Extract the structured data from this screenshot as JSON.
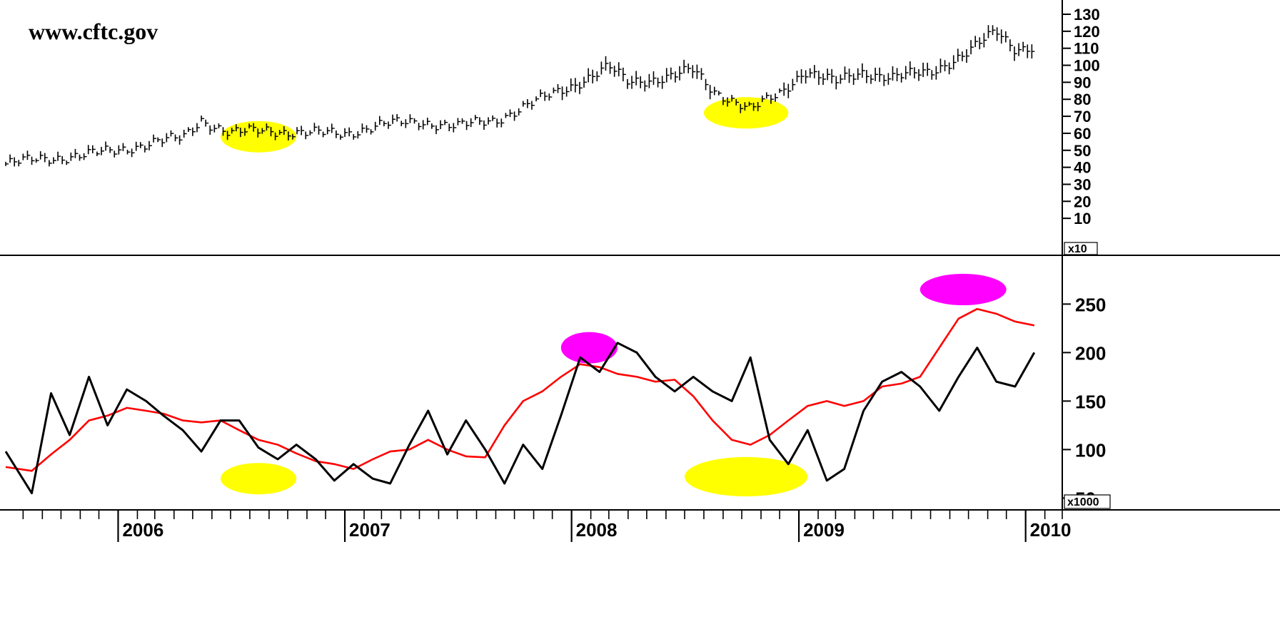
{
  "watermark": "www.cftc.gov",
  "chart_data": [
    {
      "type": "line",
      "subtype": "ohlc-bar",
      "title": "",
      "ylim": [
        0,
        130
      ],
      "yticks": [
        10,
        20,
        30,
        40,
        50,
        60,
        70,
        80,
        90,
        100,
        110,
        120,
        130
      ],
      "multiplier_label": "x10",
      "x": [
        "2005-07-04",
        "2005-09-01",
        "2005-11-01",
        "2006-01-01",
        "2006-03-01",
        "2006-04-15",
        "2006-05-15",
        "2006-07-01",
        "2006-09-01",
        "2006-11-01",
        "2007-01-01",
        "2007-03-01",
        "2007-05-01",
        "2007-07-01",
        "2007-09-01",
        "2007-11-01",
        "2008-01-01",
        "2008-03-01",
        "2008-04-01",
        "2008-06-01",
        "2008-07-15",
        "2008-08-15",
        "2008-09-15",
        "2008-10-15",
        "2008-12-01",
        "2009-01-10",
        "2009-03-01",
        "2009-04-15",
        "2009-06-01",
        "2009-08-01",
        "2009-10-01",
        "2009-11-15",
        "2009-12-15",
        "2010-01-15"
      ],
      "series": [
        {
          "values": [
            42,
            45,
            47,
            50,
            55,
            57,
            68,
            60,
            62,
            60,
            60,
            65,
            67,
            64,
            68,
            78,
            88,
            99,
            90,
            93,
            97,
            85,
            80,
            74,
            83,
            97,
            90,
            96,
            93,
            96,
            108,
            120,
            110,
            111
          ]
        }
      ],
      "highlights": [
        {
          "color": "#ffff00",
          "x_range": [
            "2006-06-15",
            "2006-10-15"
          ],
          "y_center": 58
        },
        {
          "color": "#ffff00",
          "x_range": [
            "2008-08-01",
            "2008-12-15"
          ],
          "y_center": 72
        }
      ],
      "grid": false
    },
    {
      "type": "line",
      "title": "",
      "ylim": [
        40,
        290
      ],
      "yticks": [
        50,
        100,
        150,
        200,
        250
      ],
      "multiplier_label": "x1000",
      "x_ticks": [
        "2006",
        "2007",
        "2008",
        "2009",
        "2010"
      ],
      "x": [
        "2005-07-04",
        "2005-08-15",
        "2005-09-15",
        "2005-10-15",
        "2005-11-15",
        "2005-12-15",
        "2006-01-15",
        "2006-02-15",
        "2006-03-15",
        "2006-04-15",
        "2006-05-15",
        "2006-06-15",
        "2006-07-15",
        "2006-08-15",
        "2006-09-15",
        "2006-10-15",
        "2006-11-15",
        "2006-12-15",
        "2007-01-15",
        "2007-02-15",
        "2007-03-15",
        "2007-04-15",
        "2007-05-15",
        "2007-06-15",
        "2007-07-15",
        "2007-08-15",
        "2007-09-15",
        "2007-10-15",
        "2007-11-15",
        "2007-12-15",
        "2008-01-15",
        "2008-02-15",
        "2008-03-15",
        "2008-04-15",
        "2008-05-15",
        "2008-06-15",
        "2008-07-15",
        "2008-08-15",
        "2008-09-15",
        "2008-10-15",
        "2008-11-15",
        "2008-12-15",
        "2009-01-15",
        "2009-02-15",
        "2009-03-15",
        "2009-04-15",
        "2009-05-15",
        "2009-06-15",
        "2009-07-15",
        "2009-08-15",
        "2009-09-15",
        "2009-10-15",
        "2009-11-15",
        "2009-12-15",
        "2010-01-15"
      ],
      "series": [
        {
          "color": "#000000",
          "values": [
            98,
            55,
            158,
            115,
            175,
            125,
            162,
            150,
            135,
            120,
            98,
            130,
            130,
            102,
            90,
            105,
            90,
            68,
            85,
            70,
            65,
            105,
            140,
            95,
            130,
            100,
            65,
            105,
            80,
            135,
            195,
            180,
            210,
            200,
            175,
            160,
            175,
            160,
            150,
            195,
            110,
            85,
            120,
            68,
            80,
            140,
            170,
            180,
            165,
            140,
            175,
            205,
            170,
            165,
            200
          ]
        },
        {
          "color": "#ff0000",
          "values": [
            82,
            78,
            95,
            110,
            130,
            135,
            143,
            140,
            137,
            130,
            128,
            130,
            120,
            110,
            105,
            96,
            88,
            85,
            80,
            90,
            98,
            100,
            110,
            100,
            93,
            92,
            125,
            150,
            160,
            175,
            188,
            185,
            178,
            175,
            170,
            172,
            155,
            130,
            110,
            105,
            115,
            130,
            145,
            150,
            145,
            150,
            165,
            168,
            175,
            205,
            235,
            245,
            240,
            232,
            228
          ]
        }
      ],
      "highlights": [
        {
          "color": "#ffff00",
          "x_range": [
            "2006-06-15",
            "2006-10-15"
          ],
          "y_center": 70
        },
        {
          "color": "#ff00ff",
          "x_range": [
            "2007-12-15",
            "2008-03-15"
          ],
          "y_center": 205
        },
        {
          "color": "#ffff00",
          "x_range": [
            "2008-07-01",
            "2009-01-15"
          ],
          "y_center": 72
        },
        {
          "color": "#ff00ff",
          "x_range": [
            "2009-07-15",
            "2009-12-01"
          ],
          "y_center": 265
        }
      ],
      "grid": false
    }
  ]
}
